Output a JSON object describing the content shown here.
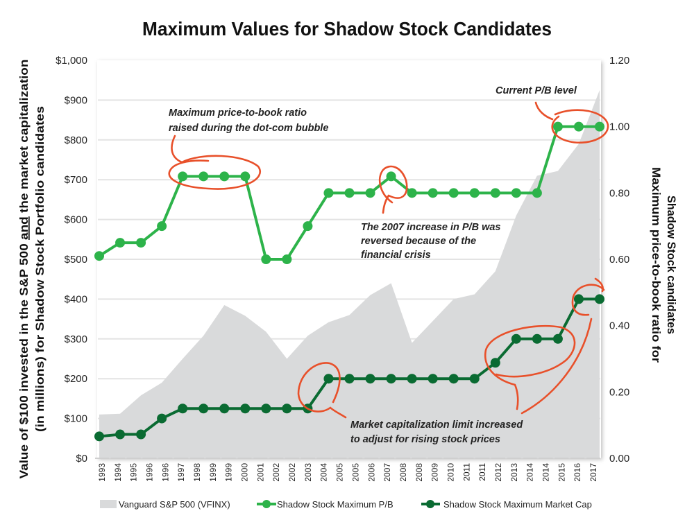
{
  "chart_data": {
    "type": "line",
    "title": "Maximum Values for Shadow Stock Candidates",
    "ylabel": {
      "line1_before": "Value of $100 invested in the S&P 500 ",
      "line1_underlined": "and",
      "line1_after": " the market capitalization",
      "line2": "(in millions) for Shadow Stock Portfolio candidates"
    },
    "y2label": {
      "line1": "Maximum price-to-book ratio for",
      "line2": "Shadow Stock candidates"
    },
    "ylim": [
      0,
      1000
    ],
    "y2lim": [
      0,
      1.2
    ],
    "yticks": [
      "$0",
      "$100",
      "$200",
      "$300",
      "$400",
      "$500",
      "$600",
      "$700",
      "$800",
      "$900",
      "$1,000"
    ],
    "y2ticks": [
      "0.00",
      "0.20",
      "0.40",
      "0.60",
      "0.80",
      "1.00",
      "1.20"
    ],
    "xtick_labels": [
      "1993",
      "1994",
      "1995",
      "1996",
      "1996",
      "1997",
      "1998",
      "1999",
      "1999",
      "2000",
      "2001",
      "2002",
      "2002",
      "2003",
      "2004",
      "2005",
      "2005",
      "2006",
      "2007",
      "2008",
      "2008",
      "2009",
      "2010",
      "2011",
      "2011",
      "2012",
      "2013",
      "2014",
      "2014",
      "2015",
      "2016",
      "2017"
    ],
    "grid": "horizontal",
    "legend_position": "bottom",
    "series": [
      {
        "name": "Vanguard S&P 500 (VFINX)",
        "type": "area",
        "axis": "left",
        "color": "#d9dadb",
        "values": [
          110,
          112,
          158,
          190,
          250,
          308,
          385,
          358,
          318,
          250,
          308,
          342,
          360,
          410,
          440,
          290,
          345,
          400,
          412,
          470,
          610,
          710,
          722,
          790,
          925
        ]
      },
      {
        "name": "Shadow Stock Maximum P/B",
        "type": "line",
        "axis": "right",
        "color": "#2db34a",
        "values": [
          0.61,
          0.65,
          0.65,
          0.7,
          0.85,
          0.85,
          0.85,
          0.85,
          0.6,
          0.6,
          0.7,
          0.8,
          0.8,
          0.8,
          0.85,
          0.8,
          0.8,
          0.8,
          0.8,
          0.8,
          0.8,
          0.8,
          1.0,
          1.0,
          1.0
        ]
      },
      {
        "name": "Shadow Stock Maximum Market Cap",
        "type": "line",
        "axis": "left",
        "color": "#0a6b32",
        "values": [
          55,
          60,
          60,
          100,
          125,
          125,
          125,
          125,
          125,
          125,
          125,
          200,
          200,
          200,
          200,
          200,
          200,
          200,
          200,
          240,
          300,
          300,
          300,
          400,
          400
        ]
      }
    ],
    "annotations": {
      "dotcom": [
        "Maximum price-to-book ratio",
        "raised during the dot-com bubble"
      ],
      "current": [
        "Current P/B level"
      ],
      "crisis": [
        "The 2007 increase in P/B was",
        "reversed because of the",
        "financial crisis"
      ],
      "mktcap": [
        "Market capitalization limit increased",
        "to adjust for rising stock prices"
      ]
    },
    "annotation_color": "#e8502a"
  }
}
